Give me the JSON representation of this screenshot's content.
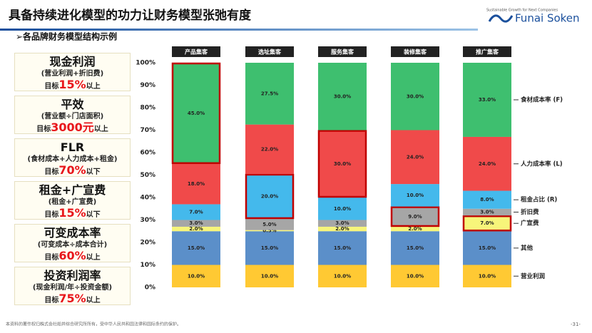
{
  "header": {
    "title": "具备持续进化模型的功力让财务模型张弛有度",
    "logo": "Funai Soken",
    "tagline": "Sustainable Growth for Next Companies"
  },
  "subtitle": "➢各品牌财务模型结构示例",
  "panel": [
    {
      "name": "现金利润",
      "formula": "(营业利润+折旧费)",
      "prefix": "目标",
      "target": "15%",
      "suffix": "以上"
    },
    {
      "name": "平效",
      "formula": "(营业额÷门店面积)",
      "prefix": "目标",
      "target": "3000元",
      "suffix": "以上"
    },
    {
      "name": "FLR",
      "formula": "(食材成本+人力成本+租金)",
      "prefix": "目标",
      "target": "70%",
      "suffix": "以下"
    },
    {
      "name": "租金+广宣费",
      "formula": "(租金+广宣费)",
      "prefix": "目标",
      "target": "15%",
      "suffix": "以下"
    },
    {
      "name": "可变成本率",
      "formula": "(可变成本÷成本合计)",
      "prefix": "目标",
      "target": "60%",
      "suffix": "以上"
    },
    {
      "name": "投资利润率",
      "formula": "(现金利润/年÷投资金额)",
      "prefix": "目标",
      "target": "75%",
      "suffix": "以上"
    }
  ],
  "footer": "本资料的著作权归株式会社船井综合研究所所有，受中华人民共和国法律和国际条约的保护。",
  "page": "-31-",
  "chart_data": {
    "type": "stacked-bar",
    "categories": [
      "产品集客",
      "选址集客",
      "服务集客",
      "装修集客",
      "推广集客"
    ],
    "series": [
      {
        "name": "营业利润",
        "color": "#ffc933",
        "values": [
          10,
          10,
          10,
          10,
          10
        ],
        "value_labels": [
          "10.0%",
          "10.0%",
          "10.0%",
          "10.0%",
          "10.0%"
        ]
      },
      {
        "name": "其他",
        "color": "#5b8fc9",
        "values": [
          15,
          15,
          15,
          15,
          15
        ],
        "value_labels": [
          "15.0%",
          "15.0%",
          "15.0%",
          "15.0%",
          "15.0%"
        ]
      },
      {
        "name": "广宣费",
        "color": "#f7f57a",
        "values": [
          2,
          0.5,
          2,
          2,
          7
        ],
        "value_labels": [
          "2.0%",
          "0.5%",
          "2.0%",
          "2.0%",
          "7.0%"
        ]
      },
      {
        "name": "折旧费",
        "color": "#a6a6a6",
        "values": [
          3,
          5,
          3,
          9,
          3
        ],
        "value_labels": [
          "3.0%",
          "5.0%",
          "3.0%",
          "9.0%",
          "3.0%"
        ]
      },
      {
        "name": "租金占比 (R)",
        "color": "#44b9ec",
        "values": [
          7,
          20,
          10,
          10,
          8
        ],
        "value_labels": [
          "7.0%",
          "20.0%",
          "10.0%",
          "10.0%",
          "8.0%"
        ]
      },
      {
        "name": "人力成本率 (L)",
        "color": "#f04a4a",
        "values": [
          18,
          22,
          30,
          24,
          24
        ],
        "value_labels": [
          "18.0%",
          "22.0%",
          "30.0%",
          "24.0%",
          "24.0%"
        ]
      },
      {
        "name": "食材成本率 (F)",
        "color": "#3ebf6f",
        "values": [
          45,
          27.5,
          30,
          30,
          33
        ],
        "value_labels": [
          "45.0%",
          "27.5%",
          "30.0%",
          "30.0%",
          "33.0%"
        ]
      }
    ],
    "highlight": [
      6,
      4,
      5,
      3,
      2
    ],
    "ylim": [
      0,
      100
    ],
    "yticks": [
      {
        "value": 0,
        "label": "0%"
      },
      {
        "value": 10,
        "label": "10%"
      },
      {
        "value": 20,
        "label": "20%"
      },
      {
        "value": 30,
        "label": "30%"
      },
      {
        "value": 40,
        "label": "40%"
      },
      {
        "value": 50,
        "label": "50%"
      },
      {
        "value": 60,
        "label": "60%"
      },
      {
        "value": 70,
        "label": "70%"
      },
      {
        "value": 80,
        "label": "80%"
      },
      {
        "value": 90,
        "label": "90%"
      },
      {
        "value": 100,
        "label": "100%"
      }
    ]
  }
}
